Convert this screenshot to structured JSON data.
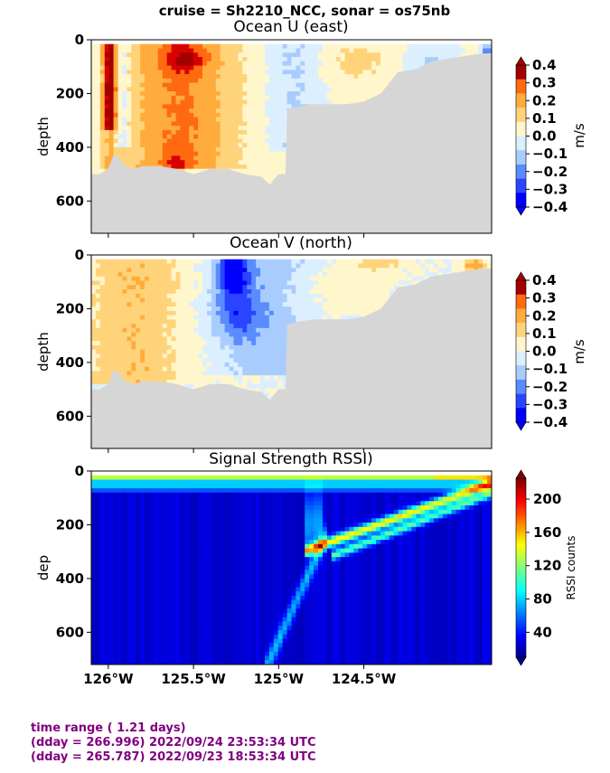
{
  "suptitle": "cruise = Sh2210_NCC,  sonar = os75nb",
  "footer": {
    "line1": "time range ( 1.21 days)",
    "line2": "(dday = 266.996) 2022/09/24 23:53:34 UTC",
    "line3": "(dday = 265.787) 2022/09/23 18:53:34 UTC"
  },
  "colors": {
    "land": "#d6d6d6",
    "footer_text": "#800080",
    "velocity_levels": [
      "#0000ff",
      "#2a45ff",
      "#5a8cff",
      "#a9ccff",
      "#dcefff",
      "#fff6cc",
      "#ffd37a",
      "#ffac3c",
      "#ff6a10",
      "#d90000",
      "#a30000"
    ]
  },
  "chart_data": [
    {
      "type": "heatmap",
      "title": "Ocean U (east)",
      "ylabel": "depth",
      "xlim": [
        -126.1,
        -123.75
      ],
      "ylim": [
        720,
        0
      ],
      "xticks": [
        -126.0,
        -125.5,
        -125.0,
        -124.5
      ],
      "yticks": [
        0,
        200,
        400,
        600
      ],
      "xtick_labels_shown": false,
      "colorbar": {
        "label": "m/s",
        "ticks": [
          "0.4",
          "0.3",
          "0.2",
          "0.1",
          "0.0",
          "−0.1",
          "−0.2",
          "−0.3",
          "−0.4"
        ],
        "range": [
          -0.4,
          0.4
        ]
      },
      "bottom_depth_profile": {
        "lon": [
          -126.1,
          -126.05,
          -126.0,
          -125.97,
          -125.95,
          -125.9,
          -125.85,
          -125.8,
          -125.7,
          -125.6,
          -125.5,
          -125.4,
          -125.3,
          -125.2,
          -125.1,
          -125.05,
          -125.03,
          -125.0,
          -124.96,
          -124.95,
          -124.9,
          -124.8,
          -124.7,
          -124.6,
          -124.5,
          -124.4,
          -124.3,
          -124.2,
          -124.1,
          -124.0,
          -123.9,
          -123.8,
          -123.75
        ],
        "depth": [
          500,
          500,
          480,
          430,
          430,
          470,
          480,
          470,
          470,
          480,
          500,
          480,
          480,
          500,
          510,
          540,
          520,
          500,
          500,
          260,
          250,
          240,
          240,
          240,
          230,
          200,
          120,
          110,
          80,
          70,
          60,
          50,
          50
        ]
      },
      "features": [
        {
          "desc": "strong eastward core",
          "lon": -126.0,
          "depth": [
            20,
            320
          ],
          "value": 0.4
        },
        {
          "desc": "eastward surface max",
          "lon": -125.55,
          "depth": [
            40,
            110
          ],
          "value": 0.35
        },
        {
          "desc": "broad eastward flow",
          "lon_range": [
            -125.9,
            -125.35
          ],
          "depth": [
            50,
            520
          ],
          "value": 0.15
        }
      ]
    },
    {
      "type": "heatmap",
      "title": "Ocean V (north)",
      "ylabel": "depth",
      "xlim": [
        -126.1,
        -123.75
      ],
      "ylim": [
        720,
        0
      ],
      "xticks": [
        -126.0,
        -125.5,
        -125.0,
        -124.5
      ],
      "yticks": [
        0,
        200,
        400,
        600
      ],
      "xtick_labels_shown": false,
      "colorbar": {
        "label": "m/s",
        "ticks": [
          "0.4",
          "0.3",
          "0.2",
          "0.1",
          "0.0",
          "−0.1",
          "−0.2",
          "−0.3",
          "−0.4"
        ],
        "range": [
          -0.4,
          0.4
        ]
      },
      "bottom_depth_profile": {
        "lon": [
          -126.1,
          -126.05,
          -126.0,
          -125.97,
          -125.95,
          -125.9,
          -125.85,
          -125.8,
          -125.7,
          -125.6,
          -125.5,
          -125.4,
          -125.3,
          -125.2,
          -125.1,
          -125.05,
          -125.03,
          -125.0,
          -124.96,
          -124.95,
          -124.9,
          -124.8,
          -124.7,
          -124.6,
          -124.5,
          -124.4,
          -124.3,
          -124.2,
          -124.1,
          -124.0,
          -123.9,
          -123.8,
          -123.75
        ],
        "depth": [
          500,
          500,
          480,
          430,
          430,
          470,
          480,
          470,
          470,
          480,
          500,
          480,
          480,
          500,
          510,
          540,
          520,
          500,
          500,
          260,
          250,
          240,
          240,
          240,
          230,
          200,
          120,
          110,
          80,
          70,
          60,
          50,
          50
        ]
      },
      "features": [
        {
          "desc": "southward core",
          "lon": -125.25,
          "depth": [
            20,
            280
          ],
          "value": -0.35
        },
        {
          "desc": "northward western flow",
          "lon_range": [
            -126.1,
            -125.55
          ],
          "depth": [
            20,
            480
          ],
          "value": 0.15
        }
      ]
    },
    {
      "type": "heatmap",
      "title": "Signal Strength RSSI)",
      "ylabel": "dep",
      "xlim": [
        -126.1,
        -123.75
      ],
      "ylim": [
        720,
        0
      ],
      "xticks": [
        -126.0,
        -125.5,
        -125.0,
        -124.5
      ],
      "xtick_labels": [
        "126°W",
        "125.5°W",
        "125°W",
        "124.5°W"
      ],
      "yticks": [
        0,
        200,
        400,
        600
      ],
      "colorbar": {
        "label": "RSSI counts",
        "ticks": [
          "200",
          "160",
          "120",
          "80",
          "40"
        ],
        "range": [
          10,
          225
        ]
      },
      "features": [
        {
          "desc": "high surface return",
          "depth": [
            20,
            60
          ],
          "value": 130
        },
        {
          "desc": "scattering layer descending east",
          "lon_range": [
            -124.85,
            -123.8
          ],
          "depth": [
            300,
            50
          ],
          "value": 180
        },
        {
          "desc": "background",
          "value": 30
        }
      ]
    }
  ]
}
